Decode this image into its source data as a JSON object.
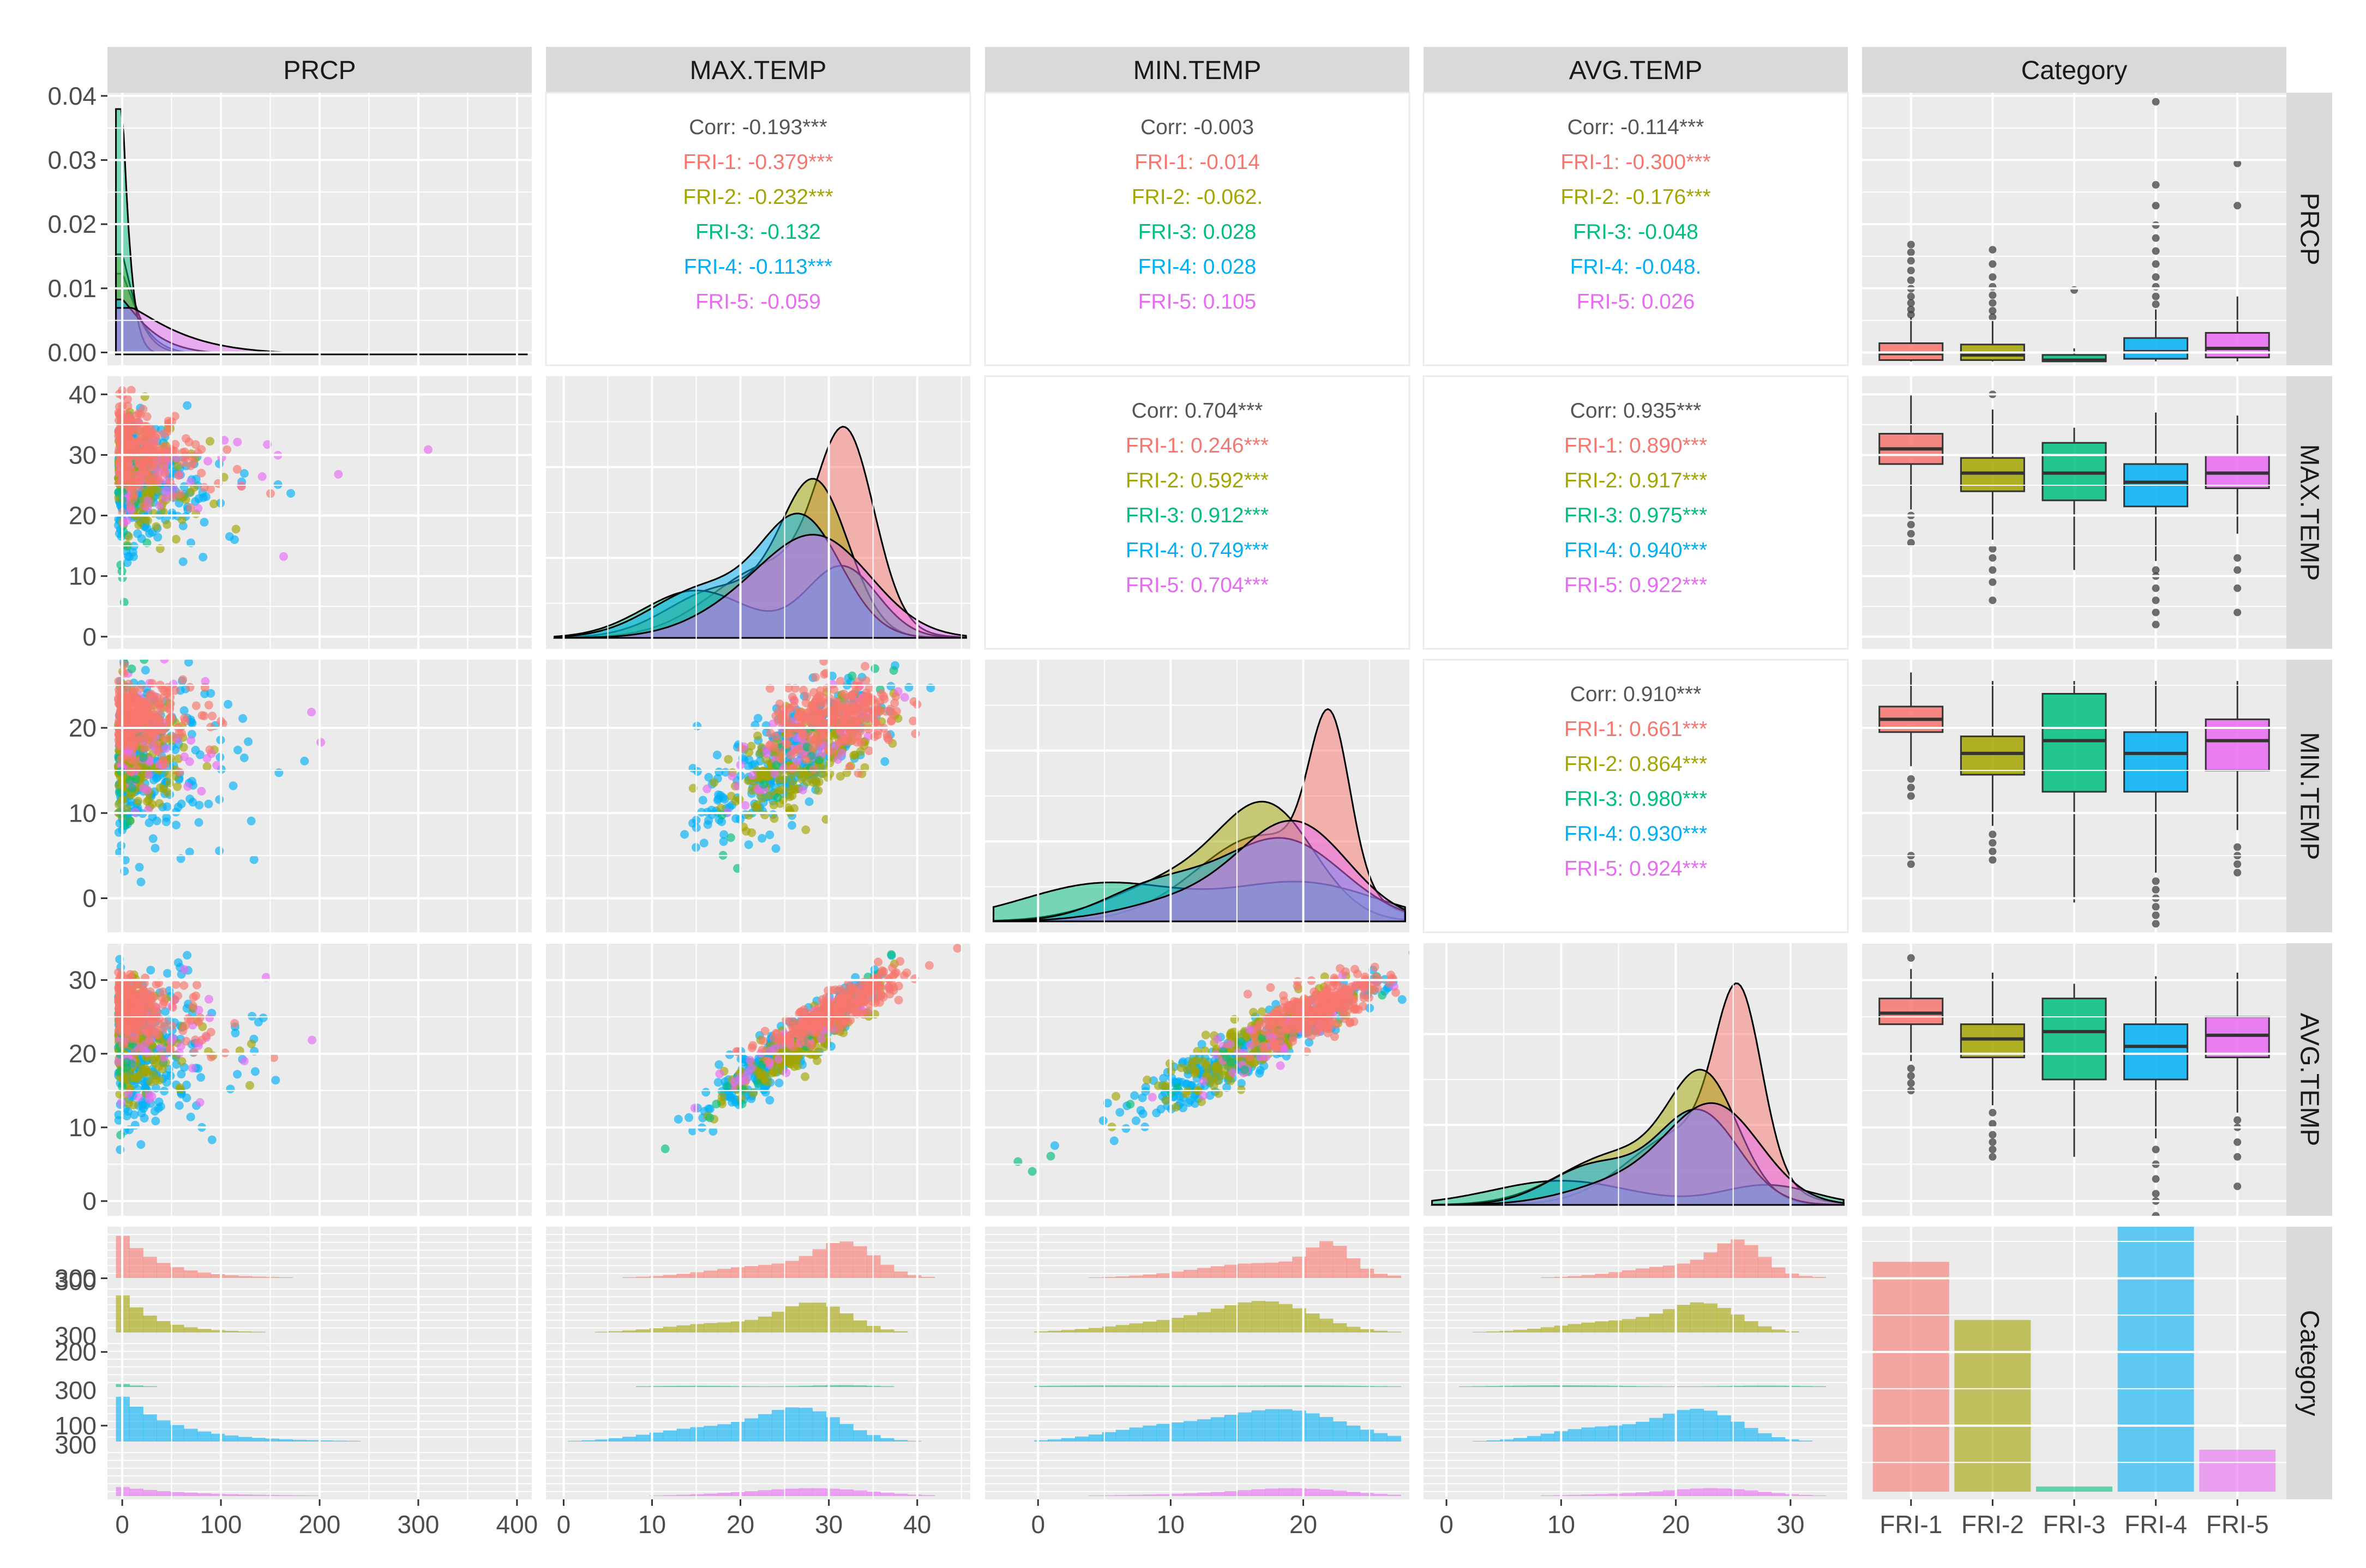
{
  "variables": [
    "PRCP",
    "MAX.TEMP",
    "MIN.TEMP",
    "AVG.TEMP",
    "Category"
  ],
  "categories": [
    "FRI-1",
    "FRI-2",
    "FRI-3",
    "FRI-4",
    "FRI-5"
  ],
  "colors": {
    "FRI-1": "#F8766D",
    "FRI-2": "#A3A500",
    "FRI-3": "#00BF7D",
    "FRI-4": "#00B0F6",
    "FRI-5": "#E76BF3",
    "overall": "#555555",
    "panel": "#EBEBEB",
    "strip": "#D9D9D9",
    "grid": "#FFFFFF"
  },
  "axes": {
    "x_ticks": {
      "PRCP": [
        0,
        100,
        200,
        300,
        400
      ],
      "MAX.TEMP": [
        0,
        10,
        20,
        30,
        40
      ],
      "MIN.TEMP": [
        0,
        10,
        20
      ],
      "AVG.TEMP": [
        0,
        10,
        20,
        30
      ],
      "Category": [
        "FRI-1",
        "FRI-2",
        "FRI-3",
        "FRI-4",
        "FRI-5"
      ]
    },
    "x_range": {
      "PRCP": [
        -15,
        415
      ],
      "MAX.TEMP": [
        -2,
        46
      ],
      "MIN.TEMP": [
        -4,
        28
      ],
      "AVG.TEMP": [
        -2,
        35
      ],
      "Category": [
        0.4,
        5.6
      ]
    },
    "y_ticks": {
      "PRCP": [
        "0.00",
        "0.01",
        "0.02",
        "0.03",
        "0.04"
      ],
      "MAX.TEMP": [
        0,
        10,
        20,
        30,
        40
      ],
      "MIN.TEMP": [
        0,
        10,
        20
      ],
      "AVG.TEMP": [
        0,
        10,
        20,
        30
      ],
      "Category": [
        100,
        200,
        300
      ]
    },
    "y_range": {
      "PRCP": [
        -0.002,
        0.0405
      ],
      "MAX.TEMP": [
        -2,
        43
      ],
      "MIN.TEMP": [
        -4,
        28
      ],
      "AVG.TEMP": [
        -2,
        35
      ],
      "Category": [
        0,
        370
      ]
    }
  },
  "chart_data": {
    "type": "pairs",
    "correlations": [
      {
        "row": "PRCP",
        "col": "MAX.TEMP",
        "lines": [
          {
            "label": "Corr: -0.193***",
            "group": "overall"
          },
          {
            "label": "FRI-1: -0.379***",
            "group": "FRI-1"
          },
          {
            "label": "FRI-2: -0.232***",
            "group": "FRI-2"
          },
          {
            "label": "FRI-3: -0.132",
            "group": "FRI-3"
          },
          {
            "label": "FRI-4: -0.113***",
            "group": "FRI-4"
          },
          {
            "label": "FRI-5: -0.059",
            "group": "FRI-5"
          }
        ]
      },
      {
        "row": "PRCP",
        "col": "MIN.TEMP",
        "lines": [
          {
            "label": "Corr: -0.003",
            "group": "overall"
          },
          {
            "label": "FRI-1: -0.014",
            "group": "FRI-1"
          },
          {
            "label": "FRI-2: -0.062.",
            "group": "FRI-2"
          },
          {
            "label": "FRI-3: 0.028",
            "group": "FRI-3"
          },
          {
            "label": "FRI-4: 0.028",
            "group": "FRI-4"
          },
          {
            "label": "FRI-5: 0.105",
            "group": "FRI-5"
          }
        ]
      },
      {
        "row": "PRCP",
        "col": "AVG.TEMP",
        "lines": [
          {
            "label": "Corr: -0.114***",
            "group": "overall"
          },
          {
            "label": "FRI-1: -0.300***",
            "group": "FRI-1"
          },
          {
            "label": "FRI-2: -0.176***",
            "group": "FRI-2"
          },
          {
            "label": "FRI-3: -0.048",
            "group": "FRI-3"
          },
          {
            "label": "FRI-4: -0.048.",
            "group": "FRI-4"
          },
          {
            "label": "FRI-5: 0.026",
            "group": "FRI-5"
          }
        ]
      },
      {
        "row": "MAX.TEMP",
        "col": "MIN.TEMP",
        "lines": [
          {
            "label": "Corr: 0.704***",
            "group": "overall"
          },
          {
            "label": "FRI-1: 0.246***",
            "group": "FRI-1"
          },
          {
            "label": "FRI-2: 0.592***",
            "group": "FRI-2"
          },
          {
            "label": "FRI-3: 0.912***",
            "group": "FRI-3"
          },
          {
            "label": "FRI-4: 0.749***",
            "group": "FRI-4"
          },
          {
            "label": "FRI-5: 0.704***",
            "group": "FRI-5"
          }
        ]
      },
      {
        "row": "MAX.TEMP",
        "col": "AVG.TEMP",
        "lines": [
          {
            "label": "Corr: 0.935***",
            "group": "overall"
          },
          {
            "label": "FRI-1: 0.890***",
            "group": "FRI-1"
          },
          {
            "label": "FRI-2: 0.917***",
            "group": "FRI-2"
          },
          {
            "label": "FRI-3: 0.975***",
            "group": "FRI-3"
          },
          {
            "label": "FRI-4: 0.940***",
            "group": "FRI-4"
          },
          {
            "label": "FRI-5: 0.922***",
            "group": "FRI-5"
          }
        ]
      },
      {
        "row": "MIN.TEMP",
        "col": "AVG.TEMP",
        "lines": [
          {
            "label": "Corr: 0.910***",
            "group": "overall"
          },
          {
            "label": "FRI-1: 0.661***",
            "group": "FRI-1"
          },
          {
            "label": "FRI-2: 0.864***",
            "group": "FRI-2"
          },
          {
            "label": "FRI-3: 0.980***",
            "group": "FRI-3"
          },
          {
            "label": "FRI-4: 0.930***",
            "group": "FRI-4"
          },
          {
            "label": "FRI-5: 0.924***",
            "group": "FRI-5"
          }
        ]
      }
    ],
    "boxplots": {
      "PRCP": [
        {
          "group": "FRI-1",
          "q1": 2,
          "median": 12,
          "q3": 28,
          "whisker_low": 0,
          "whisker_high": 68,
          "outliers": [
            72,
            80,
            90,
            100,
            112,
            125,
            140,
            155,
            168,
            180
          ]
        },
        {
          "group": "FRI-2",
          "q1": 2,
          "median": 10,
          "q3": 26,
          "whisker_low": 0,
          "whisker_high": 62,
          "outliers": [
            68,
            78,
            90,
            102,
            115,
            130,
            150,
            172
          ]
        },
        {
          "group": "FRI-3",
          "q1": 0,
          "median": 2,
          "q3": 10,
          "whisker_low": 0,
          "whisker_high": 20,
          "outliers": [
            110
          ]
        },
        {
          "group": "FRI-4",
          "q1": 4,
          "median": 15,
          "q3": 36,
          "whisker_low": 0,
          "whisker_high": 80,
          "outliers": [
            88,
            100,
            115,
            130,
            150,
            170,
            190,
            210,
            240,
            272,
            400
          ]
        },
        {
          "group": "FRI-5",
          "q1": 6,
          "median": 20,
          "q3": 44,
          "whisker_low": 0,
          "whisker_high": 100,
          "outliers": [
            240,
            305
          ]
        }
      ],
      "MAX.TEMP": [
        {
          "group": "FRI-1",
          "q1": 28.5,
          "median": 31,
          "q3": 33.5,
          "whisker_low": 21,
          "whisker_high": 40,
          "outliers": [
            15.5,
            17,
            18.5,
            20
          ]
        },
        {
          "group": "FRI-2",
          "q1": 24,
          "median": 27,
          "q3": 29.5,
          "whisker_low": 16,
          "whisker_high": 37.5,
          "outliers": [
            6,
            9,
            11,
            13,
            14.5,
            40
          ]
        },
        {
          "group": "FRI-3",
          "q1": 22.5,
          "median": 27,
          "q3": 32,
          "whisker_low": 11,
          "whisker_high": 34.5,
          "outliers": []
        },
        {
          "group": "FRI-4",
          "q1": 21.5,
          "median": 25.5,
          "q3": 28.5,
          "whisker_low": 12.5,
          "whisker_high": 37,
          "outliers": [
            2,
            4,
            6,
            8,
            10,
            11
          ]
        },
        {
          "group": "FRI-5",
          "q1": 24.5,
          "median": 27,
          "q3": 30,
          "whisker_low": 17,
          "whisker_high": 36.5,
          "outliers": [
            4,
            8,
            11,
            13
          ]
        }
      ],
      "MIN.TEMP": [
        {
          "group": "FRI-1",
          "q1": 19.5,
          "median": 21,
          "q3": 22.5,
          "whisker_low": 15.5,
          "whisker_high": 26.5,
          "outliers": [
            4,
            5,
            12,
            13,
            14
          ]
        },
        {
          "group": "FRI-2",
          "q1": 14.5,
          "median": 17,
          "q3": 19,
          "whisker_low": 8.5,
          "whisker_high": 25.5,
          "outliers": [
            4.5,
            5.5,
            6.5,
            7.5
          ]
        },
        {
          "group": "FRI-3",
          "q1": 12.5,
          "median": 18.5,
          "q3": 24,
          "whisker_low": -0.5,
          "whisker_high": 25.5,
          "outliers": []
        },
        {
          "group": "FRI-4",
          "q1": 12.5,
          "median": 17,
          "q3": 19.5,
          "whisker_low": 3,
          "whisker_high": 25.5,
          "outliers": [
            -3,
            -2,
            -1,
            0,
            1,
            2
          ]
        },
        {
          "group": "FRI-5",
          "q1": 15,
          "median": 18.5,
          "q3": 21,
          "whisker_low": 8,
          "whisker_high": 25.5,
          "outliers": [
            3,
            4,
            5,
            6
          ]
        }
      ],
      "AVG.TEMP": [
        {
          "group": "FRI-1",
          "q1": 24,
          "median": 25.5,
          "q3": 27.5,
          "whisker_low": 19,
          "whisker_high": 31.5,
          "outliers": [
            15,
            16,
            17,
            18,
            33
          ]
        },
        {
          "group": "FRI-2",
          "q1": 19.5,
          "median": 22,
          "q3": 24,
          "whisker_low": 13,
          "whisker_high": 31,
          "outliers": [
            6,
            7,
            8,
            9,
            10.5,
            12
          ]
        },
        {
          "group": "FRI-3",
          "q1": 16.5,
          "median": 23,
          "q3": 27.5,
          "whisker_low": 6,
          "whisker_high": 29.5,
          "outliers": []
        },
        {
          "group": "FRI-4",
          "q1": 16.5,
          "median": 21,
          "q3": 24,
          "whisker_low": 8.5,
          "whisker_high": 30.5,
          "outliers": [
            -2,
            0,
            1,
            3,
            5,
            7
          ]
        },
        {
          "group": "FRI-5",
          "q1": 19.5,
          "median": 22.5,
          "q3": 25,
          "whisker_low": 12,
          "whisker_high": 31,
          "outliers": [
            2,
            6,
            8,
            10,
            11
          ]
        }
      ]
    },
    "category_counts": [
      {
        "group": "FRI-1",
        "count": 312
      },
      {
        "group": "FRI-2",
        "count": 233
      },
      {
        "group": "FRI-3",
        "count": 7
      },
      {
        "group": "FRI-4",
        "count": 367
      },
      {
        "group": "FRI-5",
        "count": 57
      }
    ],
    "densities": {
      "PRCP": {
        "FRI-1": {
          "mode": 3,
          "sd": 16,
          "tail": 0.15,
          "tail_mean": 70,
          "tail_sd": 60,
          "peak": 0.0125
        },
        "FRI-2": {
          "mode": 3,
          "sd": 14,
          "tail": 0.15,
          "tail_mean": 65,
          "tail_sd": 55,
          "peak": 0.0155
        },
        "FRI-3": {
          "mode": 2,
          "sd": 7,
          "tail": 0.1,
          "tail_mean": 140,
          "tail_sd": 30,
          "peak": 0.038
        },
        "FRI-4": {
          "mode": 8,
          "sd": 24,
          "tail": 0.2,
          "tail_mean": 90,
          "tail_sd": 60,
          "peak": 0.0085
        },
        "FRI-5": {
          "mode": 25,
          "sd": 40,
          "tail": 0.3,
          "tail_mean": 140,
          "tail_sd": 50,
          "peak": 0.0072
        }
      },
      "MAX.TEMP": {
        "FRI-1": {
          "mode": 32,
          "sd": 3.2,
          "tail": 0.3,
          "tail_mean": 24,
          "tail_sd": 7,
          "peak": 43.5
        },
        "FRI-2": {
          "mode": 28.5,
          "sd": 3.8,
          "tail": 0.25,
          "tail_mean": 18,
          "tail_sd": 6,
          "peak": 35
        },
        "FRI-3": {
          "mode": 31.5,
          "sd": 4,
          "tail": 0.4,
          "tail_mean": 15,
          "tail_sd": 6,
          "peak": 21
        },
        "FRI-4": {
          "mode": 27,
          "sd": 4.5,
          "tail": 0.3,
          "tail_mean": 16,
          "tail_sd": 6,
          "peak": 29
        },
        "FRI-5": {
          "mode": 29,
          "sd": 6,
          "tail": 0.2,
          "tail_mean": 20,
          "tail_sd": 6,
          "peak": 21
        }
      },
      "MIN.TEMP": {
        "FRI-1": {
          "mode": 22,
          "sd": 1.5,
          "tail": 0.35,
          "tail_mean": 17,
          "tail_sd": 5,
          "peak": 27.5
        },
        "FRI-2": {
          "mode": 17.5,
          "sd": 3.5,
          "tail": 0.3,
          "tail_mean": 11,
          "tail_sd": 5,
          "peak": 16
        },
        "FRI-3": {
          "mode": 20,
          "sd": 5.5,
          "tail": 0.5,
          "tail_mean": 5,
          "tail_sd": 6,
          "peak": 8.5
        },
        "FRI-4": {
          "mode": 18.5,
          "sd": 4.5,
          "tail": 0.3,
          "tail_mean": 9,
          "tail_sd": 4,
          "peak": 13
        },
        "FRI-5": {
          "mode": 19.5,
          "sd": 4,
          "tail": 0.2,
          "tail_mean": 12,
          "tail_sd": 5,
          "peak": 13
        }
      },
      "AVG.TEMP": {
        "FRI-1": {
          "mode": 25.5,
          "sd": 2,
          "tail": 0.3,
          "tail_mean": 21,
          "tail_sd": 5,
          "peak": 33.5
        },
        "FRI-2": {
          "mode": 22.5,
          "sd": 3,
          "tail": 0.3,
          "tail_mean": 15,
          "tail_sd": 5,
          "peak": 23
        },
        "FRI-3": {
          "mode": 28,
          "sd": 4,
          "tail": 0.55,
          "tail_mean": 10,
          "tail_sd": 6,
          "peak": 6
        },
        "FRI-4": {
          "mode": 22,
          "sd": 3.5,
          "tail": 0.3,
          "tail_mean": 13,
          "tail_sd": 4,
          "peak": 18
        },
        "FRI-5": {
          "mode": 23.5,
          "sd": 4,
          "tail": 0.2,
          "tail_mean": 16,
          "tail_sd": 5,
          "peak": 16
        }
      }
    },
    "variable_summary": {
      "PRCP": {
        "FRI-1": {
          "mean": 18,
          "sd": 28
        },
        "FRI-2": {
          "mean": 16,
          "sd": 26
        },
        "FRI-3": {
          "mean": 6,
          "sd": 8
        },
        "FRI-4": {
          "mean": 24,
          "sd": 38
        },
        "FRI-5": {
          "mean": 36,
          "sd": 50
        }
      },
      "MAX.TEMP": {
        "FRI-1": {
          "mean": 31,
          "sd": 3.8
        },
        "FRI-2": {
          "mean": 27,
          "sd": 4.2
        },
        "FRI-3": {
          "mean": 27,
          "sd": 6.5
        },
        "FRI-4": {
          "mean": 25,
          "sd": 5
        },
        "FRI-5": {
          "mean": 27,
          "sd": 4.5
        }
      },
      "MIN.TEMP": {
        "FRI-1": {
          "mean": 21,
          "sd": 2.2
        },
        "FRI-2": {
          "mean": 16.5,
          "sd": 3.5
        },
        "FRI-3": {
          "mean": 17.5,
          "sd": 7
        },
        "FRI-4": {
          "mean": 16,
          "sd": 4.8
        },
        "FRI-5": {
          "mean": 18,
          "sd": 4
        }
      },
      "AVG.TEMP": {
        "FRI-1": {
          "mean": 26,
          "sd": 2.5
        },
        "FRI-2": {
          "mean": 21.5,
          "sd": 3.6
        },
        "FRI-3": {
          "mean": 22,
          "sd": 6.5
        },
        "FRI-4": {
          "mean": 20.5,
          "sd": 4.7
        },
        "FRI-5": {
          "mean": 22.5,
          "sd": 4
        }
      }
    }
  }
}
